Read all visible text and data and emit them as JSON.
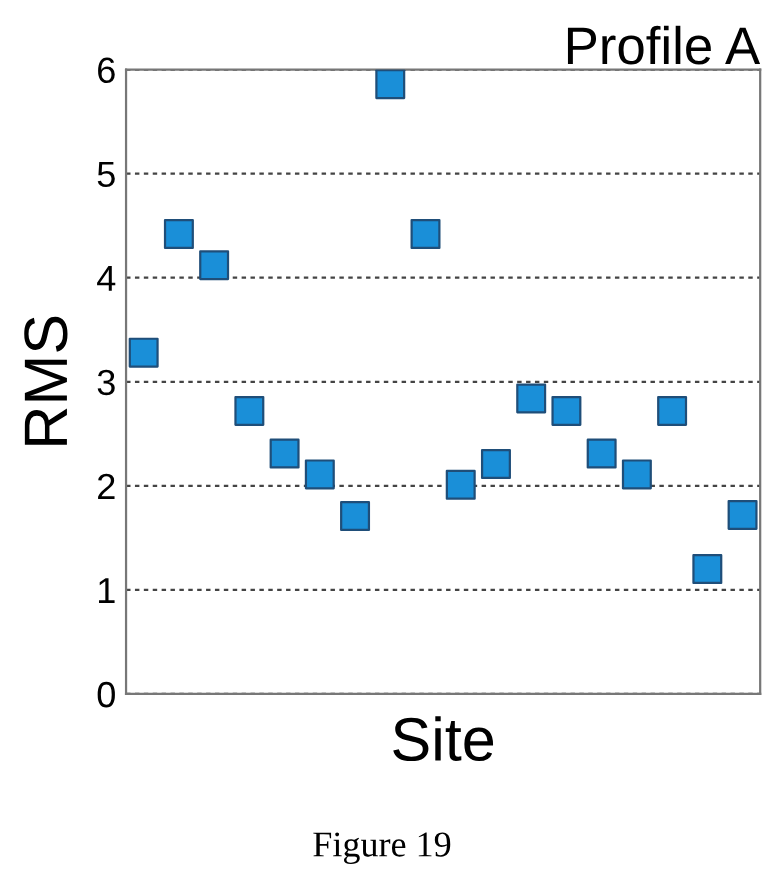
{
  "chart_data": {
    "type": "scatter",
    "title": "Profile A",
    "xlabel": "Site",
    "ylabel": "RMS",
    "categories": [
      null,
      null,
      null,
      null,
      null,
      null,
      null,
      null,
      null,
      null,
      null,
      null,
      null,
      null,
      null,
      null,
      null,
      null
    ],
    "series": [
      {
        "color": "#1a8fd8",
        "values": [
          3.28,
          4.42,
          4.12,
          2.72,
          2.31,
          2.11,
          1.71,
          5.86,
          4.42,
          2.01,
          2.21,
          2.84,
          2.72,
          2.31,
          2.11,
          2.72,
          1.2,
          1.72
        ]
      }
    ],
    "ylim": [
      0,
      6
    ],
    "yticks": [
      0,
      1,
      2,
      3,
      4,
      5,
      6
    ],
    "grid": "y",
    "marker": "square",
    "tick_labels": "y",
    "annotations": [
      "Figure 19"
    ]
  }
}
